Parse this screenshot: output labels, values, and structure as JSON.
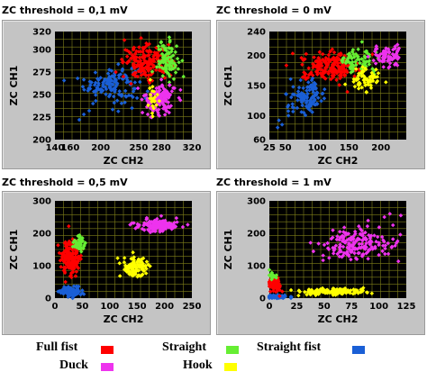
{
  "colors": {
    "full_fist": "#ff0000",
    "straight": "#66ee33",
    "straight_fist": "#1a5fd6",
    "duck": "#ee33ee",
    "hook": "#ffff00",
    "plot_bg": "#000000",
    "grid": "#7f7f1a"
  },
  "legend": {
    "full_fist": "Full fist",
    "duck": "Duck",
    "straight": "Straight",
    "hook": "Hook",
    "straight_fist": "Straight fist"
  },
  "chart_data": [
    {
      "type": "scatter",
      "title": "ZC threshold = 0,1 mV",
      "xlabel": "ZC CH2",
      "ylabel": "ZC CH1",
      "xlim": [
        140,
        320
      ],
      "ylim": [
        200,
        320
      ],
      "xticks": [
        140,
        160,
        200,
        250,
        280,
        320
      ],
      "yticks": [
        200,
        225,
        250,
        275,
        300,
        320
      ],
      "grid": true,
      "series": [
        {
          "key": "straight_fist",
          "cx": 215,
          "cy": 262,
          "sx": 18,
          "sy": 10,
          "n": 140,
          "extra": [
            [
              178,
              228
            ],
            [
              185,
              232
            ],
            [
              172,
              222
            ],
            [
              190,
              240
            ]
          ]
        },
        {
          "key": "full_fist",
          "cx": 262,
          "cy": 286,
          "sx": 16,
          "sy": 9,
          "n": 170,
          "extra": [
            [
              220,
              275
            ],
            [
              230,
              270
            ],
            [
              240,
              262
            ]
          ]
        },
        {
          "key": "straight",
          "cx": 288,
          "cy": 288,
          "sx": 7,
          "sy": 10,
          "n": 90,
          "extra": []
        },
        {
          "key": "duck",
          "cx": 278,
          "cy": 245,
          "sx": 10,
          "sy": 9,
          "n": 140,
          "extra": [
            [
              255,
              230
            ],
            [
              262,
              228
            ]
          ]
        },
        {
          "key": "hook",
          "cx": 268,
          "cy": 248,
          "sx": 4,
          "sy": 9,
          "n": 22,
          "extra": []
        }
      ]
    },
    {
      "type": "scatter",
      "title": "ZC threshold = 0 mV",
      "xlabel": "ZC CH2",
      "ylabel": "ZC CH1",
      "xlim": [
        25,
        240
      ],
      "ylim": [
        60,
        240
      ],
      "xticks": [
        25,
        50,
        100,
        150,
        200
      ],
      "yticks": [
        60,
        100,
        150,
        200,
        240
      ],
      "grid": true,
      "series": [
        {
          "key": "straight_fist",
          "cx": 85,
          "cy": 132,
          "sx": 14,
          "sy": 13,
          "n": 110,
          "extra": [
            [
              40,
              92
            ],
            [
              45,
              85
            ],
            [
              38,
              80
            ],
            [
              55,
              100
            ]
          ]
        },
        {
          "key": "full_fist",
          "cx": 120,
          "cy": 182,
          "sx": 22,
          "sy": 12,
          "n": 190,
          "extra": [
            [
              80,
              165
            ],
            [
              90,
              170
            ]
          ]
        },
        {
          "key": "straight",
          "cx": 162,
          "cy": 190,
          "sx": 14,
          "sy": 10,
          "n": 80,
          "extra": []
        },
        {
          "key": "hook",
          "cx": 175,
          "cy": 160,
          "sx": 11,
          "sy": 12,
          "n": 60,
          "extra": []
        },
        {
          "key": "duck",
          "cx": 210,
          "cy": 198,
          "sx": 12,
          "sy": 8,
          "n": 80,
          "extra": []
        }
      ]
    },
    {
      "type": "scatter",
      "title": "ZC threshold = 0,5 mV",
      "xlabel": "ZC CH2",
      "ylabel": "ZC CH1",
      "xlim": [
        0,
        250
      ],
      "ylim": [
        0,
        300
      ],
      "xticks": [
        0,
        50,
        100,
        150,
        200,
        250
      ],
      "yticks": [
        0,
        100,
        200,
        300
      ],
      "grid": true,
      "series": [
        {
          "key": "straight_fist",
          "cx": 30,
          "cy": 20,
          "sx": 9,
          "sy": 8,
          "n": 120,
          "extra": []
        },
        {
          "key": "full_fist",
          "cx": 30,
          "cy": 125,
          "sx": 9,
          "sy": 28,
          "n": 170,
          "extra": []
        },
        {
          "key": "straight",
          "cx": 45,
          "cy": 170,
          "sx": 6,
          "sy": 12,
          "n": 40,
          "extra": []
        },
        {
          "key": "hook",
          "cx": 145,
          "cy": 95,
          "sx": 12,
          "sy": 14,
          "n": 110,
          "extra": []
        },
        {
          "key": "duck",
          "cx": 190,
          "cy": 225,
          "sx": 18,
          "sy": 9,
          "n": 140,
          "extra": []
        }
      ]
    },
    {
      "type": "scatter",
      "title": "ZC threshold = 1 mV",
      "xlabel": "ZC CH2",
      "ylabel": "ZC CH1",
      "xlim": [
        0,
        125
      ],
      "ylim": [
        0,
        300
      ],
      "xticks": [
        0,
        25,
        50,
        75,
        100,
        125
      ],
      "yticks": [
        0,
        100,
        200,
        300
      ],
      "grid": true,
      "series": [
        {
          "key": "straight_fist",
          "cx": 8,
          "cy": 4,
          "sx": 5,
          "sy": 3,
          "n": 60,
          "extra": []
        },
        {
          "key": "full_fist",
          "cx": 5,
          "cy": 40,
          "sx": 3,
          "sy": 14,
          "n": 70,
          "extra": []
        },
        {
          "key": "straight",
          "cx": 3,
          "cy": 70,
          "sx": 2,
          "sy": 8,
          "n": 20,
          "extra": []
        },
        {
          "key": "hook",
          "cx": 55,
          "cy": 20,
          "sx": 15,
          "sy": 5,
          "n": 160,
          "extra": []
        },
        {
          "key": "duck",
          "cx": 80,
          "cy": 170,
          "sx": 18,
          "sy": 26,
          "n": 180,
          "extra": [
            [
              110,
              260
            ],
            [
              105,
              250
            ],
            [
              120,
              255
            ]
          ]
        }
      ]
    }
  ]
}
